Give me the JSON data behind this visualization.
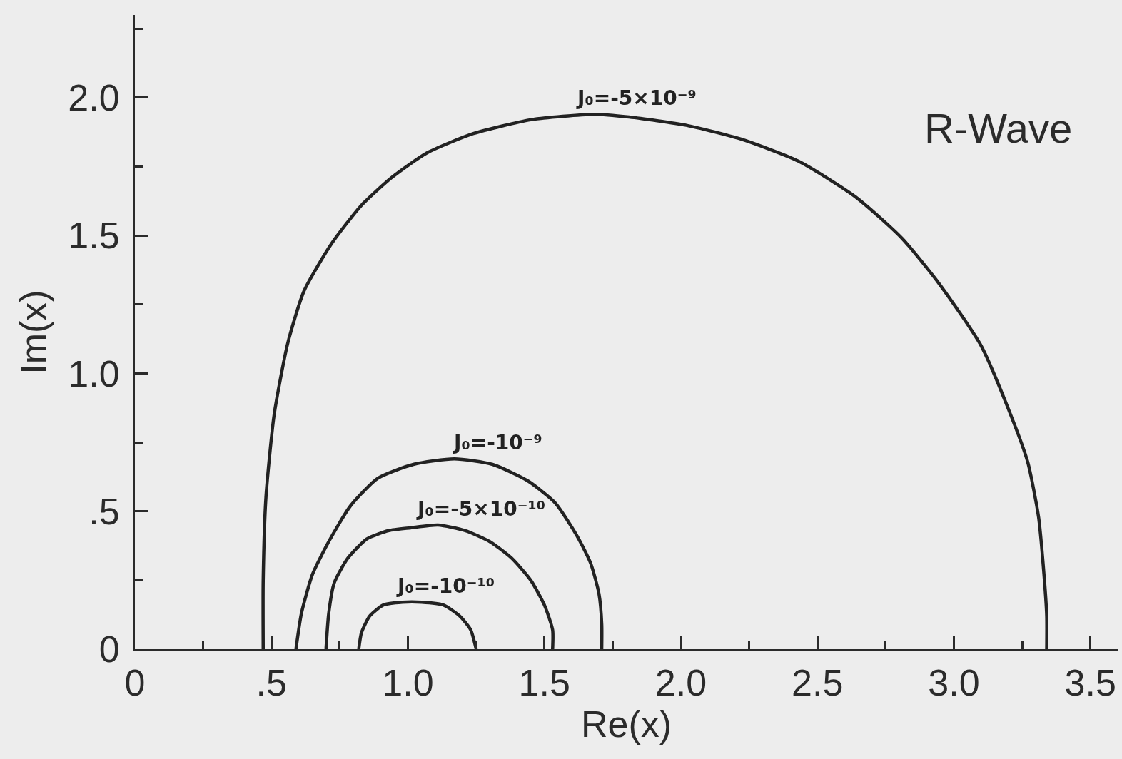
{
  "chart_data": {
    "type": "line",
    "xlabel": "Re(x)",
    "ylabel": "Im(x)",
    "annotations": [
      "R-Wave"
    ],
    "xlim": [
      0,
      3.6
    ],
    "ylim": [
      0,
      2.3
    ],
    "xticks": [
      0,
      {
        "value": 0.25,
        "label": null
      },
      {
        "value": 0.5,
        "label": ".5"
      },
      {
        "value": 0.75,
        "label": null
      },
      {
        "value": 1,
        "label": "1.0"
      },
      {
        "value": 1.25,
        "label": null
      },
      {
        "value": 1.5,
        "label": "1.5"
      },
      {
        "value": 1.75,
        "label": null
      },
      {
        "value": 2,
        "label": "2.0"
      },
      {
        "value": 2.25,
        "label": null
      },
      {
        "value": 2.5,
        "label": "2.5"
      },
      {
        "value": 2.75,
        "label": null
      },
      {
        "value": 3,
        "label": "3.0"
      },
      {
        "value": 3.25,
        "label": null
      },
      {
        "value": 3.5,
        "label": "3.5"
      }
    ],
    "yticks": [
      0,
      {
        "value": 0.25,
        "label": null
      },
      {
        "value": 0.5,
        "label": ".5"
      },
      {
        "value": 0.75,
        "label": null
      },
      {
        "value": 1,
        "label": "1.0"
      },
      {
        "value": 1.25,
        "label": null
      },
      {
        "value": 1.5,
        "label": "1.5"
      },
      {
        "value": 1.75,
        "label": null
      },
      {
        "value": 2,
        "label": "2.0"
      },
      {
        "value": 2.25,
        "label": null
      }
    ],
    "legend": false,
    "marker": "none",
    "line_style": "solid",
    "series": [
      {
        "name": "J₀=-5×10⁻⁹",
        "color": "#222222",
        "x": [
          0.47,
          0.47,
          0.48,
          0.51,
          0.56,
          0.62,
          0.72,
          0.83,
          0.94,
          1.07,
          1.24,
          1.45,
          1.68,
          1.81,
          2.02,
          2.22,
          2.43,
          2.64,
          2.81,
          2.95,
          3.1,
          3.2,
          3.27,
          3.31,
          3.33,
          3.34,
          3.34
        ],
        "values": [
          0,
          0.25,
          0.55,
          0.85,
          1.11,
          1.3,
          1.47,
          1.61,
          1.71,
          1.8,
          1.87,
          1.92,
          1.94,
          1.93,
          1.9,
          1.85,
          1.77,
          1.64,
          1.49,
          1.32,
          1.1,
          0.87,
          0.68,
          0.48,
          0.27,
          0.12,
          0
        ]
      },
      {
        "name": "J₀=-10⁻⁹",
        "color": "#222222",
        "x": [
          0.59,
          0.61,
          0.65,
          0.71,
          0.79,
          0.89,
          1.02,
          1.17,
          1.31,
          1.44,
          1.54,
          1.62,
          1.67,
          1.7,
          1.71,
          1.71
        ],
        "values": [
          0,
          0.13,
          0.27,
          0.39,
          0.52,
          0.62,
          0.67,
          0.69,
          0.67,
          0.61,
          0.53,
          0.41,
          0.31,
          0.2,
          0.09,
          0
        ]
      },
      {
        "name": "J₀=-5×10⁻¹⁰",
        "color": "#222222",
        "x": [
          0.7,
          0.71,
          0.73,
          0.78,
          0.85,
          0.93,
          1.01,
          1.11,
          1.21,
          1.3,
          1.38,
          1.45,
          1.5,
          1.53,
          1.53
        ],
        "values": [
          0,
          0.13,
          0.24,
          0.33,
          0.4,
          0.43,
          0.44,
          0.45,
          0.43,
          0.39,
          0.33,
          0.25,
          0.16,
          0.07,
          0
        ]
      },
      {
        "name": "J₀=-10⁻¹⁰",
        "color": "#222222",
        "x": [
          0.82,
          0.83,
          0.86,
          0.91,
          0.98,
          1.05,
          1.13,
          1.19,
          1.23,
          1.25
        ],
        "values": [
          0,
          0.06,
          0.12,
          0.16,
          0.17,
          0.17,
          0.16,
          0.12,
          0.07,
          0
        ]
      }
    ]
  }
}
